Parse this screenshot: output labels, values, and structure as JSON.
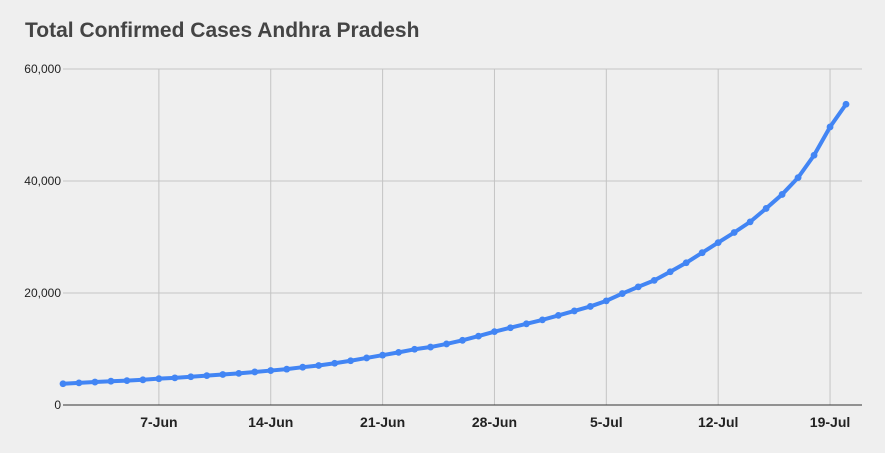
{
  "chart_data": {
    "type": "line",
    "title": "Total Confirmed Cases Andhra Pradesh",
    "xlabel": "",
    "ylabel": "",
    "ylim": [
      0,
      60000
    ],
    "y_ticks": [
      0,
      20000,
      40000,
      60000
    ],
    "y_tick_labels": [
      "0",
      "20,000",
      "40,000",
      "60,000"
    ],
    "x_tick_labels": [
      "7-Jun",
      "14-Jun",
      "21-Jun",
      "28-Jun",
      "5-Jul",
      "12-Jul",
      "19-Jul"
    ],
    "x_range": [
      "2020-06-01",
      "2020-07-21"
    ],
    "grid": true,
    "legend": "none",
    "line_color": "#4285f4",
    "series": [
      {
        "x": [
          "2020-06-01",
          "2020-06-02",
          "2020-06-03",
          "2020-06-04",
          "2020-06-05",
          "2020-06-06",
          "2020-06-07",
          "2020-06-08",
          "2020-06-09",
          "2020-06-10",
          "2020-06-11",
          "2020-06-12",
          "2020-06-13",
          "2020-06-14",
          "2020-06-15",
          "2020-06-16",
          "2020-06-17",
          "2020-06-18",
          "2020-06-19",
          "2020-06-20",
          "2020-06-21",
          "2020-06-22",
          "2020-06-23",
          "2020-06-24",
          "2020-06-25",
          "2020-06-26",
          "2020-06-27",
          "2020-06-28",
          "2020-06-29",
          "2020-06-30",
          "2020-07-01",
          "2020-07-02",
          "2020-07-03",
          "2020-07-04",
          "2020-07-05",
          "2020-07-06",
          "2020-07-07",
          "2020-07-08",
          "2020-07-09",
          "2020-07-10",
          "2020-07-11",
          "2020-07-12",
          "2020-07-13",
          "2020-07-14",
          "2020-07-15",
          "2020-07-16",
          "2020-07-17",
          "2020-07-18",
          "2020-07-19",
          "2020-07-20"
        ],
        "values": [
          3800,
          3950,
          4100,
          4250,
          4350,
          4500,
          4700,
          4850,
          5050,
          5250,
          5450,
          5650,
          5900,
          6150,
          6400,
          6750,
          7050,
          7450,
          7900,
          8400,
          8900,
          9400,
          9950,
          10350,
          10900,
          11550,
          12300,
          13100,
          13800,
          14500,
          15200,
          16000,
          16800,
          17600,
          18600,
          19900,
          21100,
          22250,
          23800,
          25400,
          27200,
          29000,
          30800,
          32700,
          35100,
          37600,
          40600,
          44600,
          49650,
          53700
        ]
      }
    ]
  }
}
